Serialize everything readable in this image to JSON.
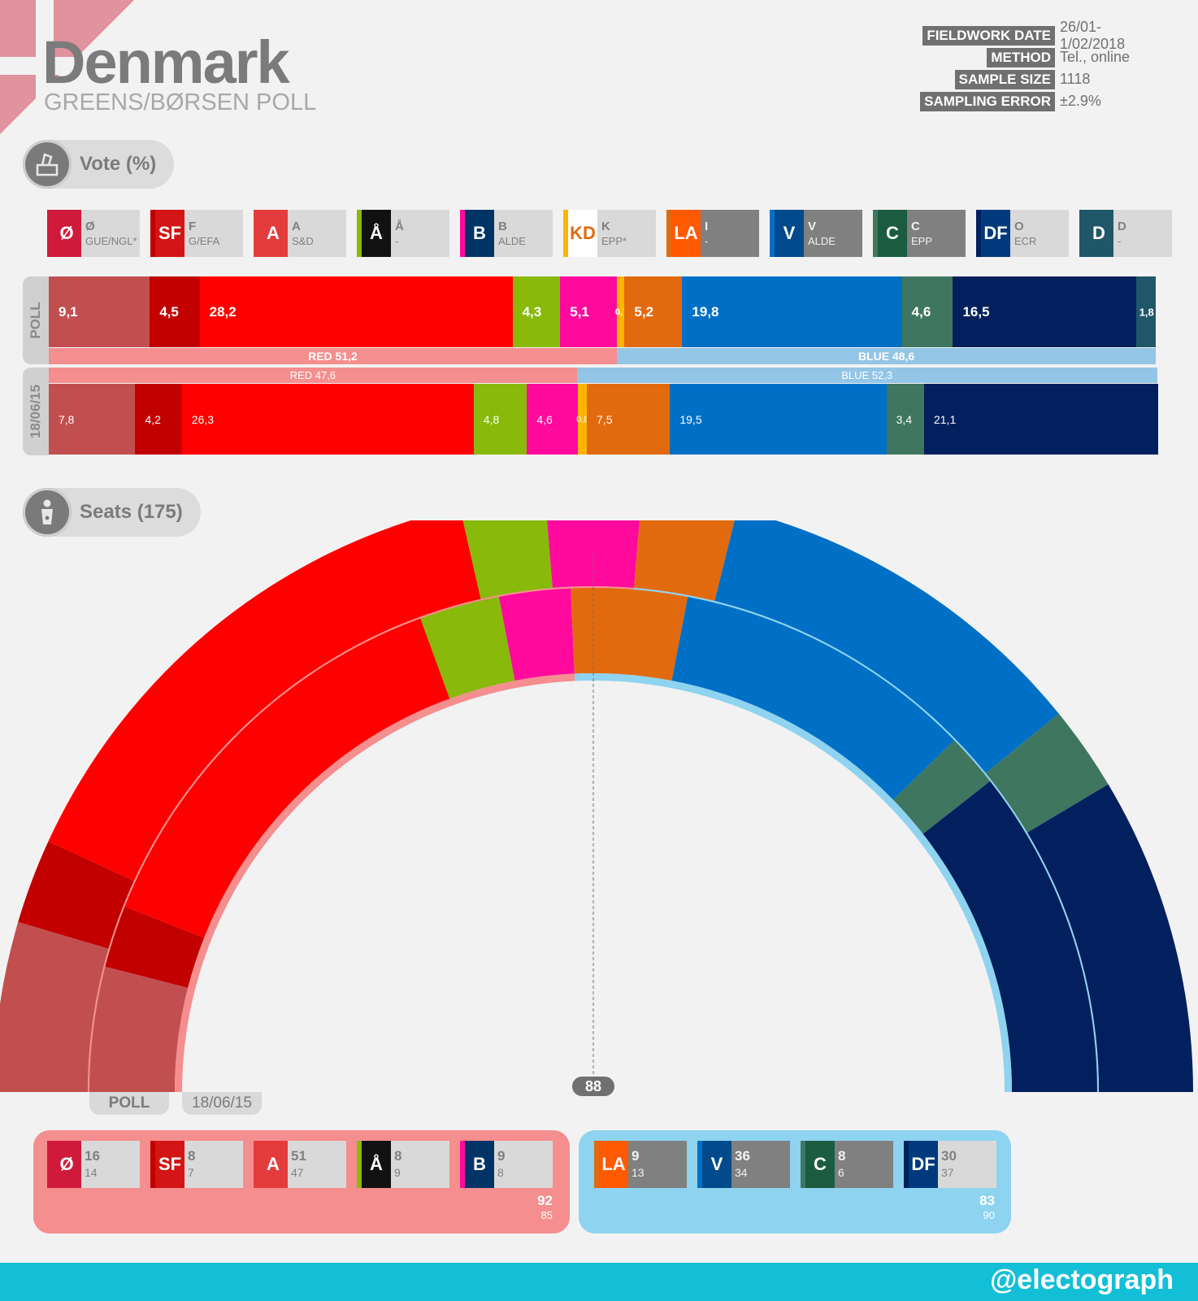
{
  "header": {
    "title": "Denmark",
    "subtitle": "GREENS/BØRSEN POLL",
    "meta": [
      {
        "label": "FIELDWORK DATE",
        "value": "26/01-1/02/2018"
      },
      {
        "label": "METHOD",
        "value": "Tel., online"
      },
      {
        "label": "SAMPLE SIZE",
        "value": "1118"
      },
      {
        "label": "SAMPLING ERROR",
        "value": "±2.9%"
      }
    ]
  },
  "vote_section": {
    "label": "Vote (%)"
  },
  "seats_section": {
    "label": "Seats (175)"
  },
  "colors": {
    "red_bloc": "#f58e8e",
    "blue_bloc": "#93c5e7",
    "blue_bloc_seats": "#8ed3ef",
    "footer": "#13bfd6"
  },
  "parties": [
    {
      "code": "Ø",
      "group": "GUE/NGL*",
      "logo": "Ø",
      "color": "#c24f50",
      "strip": "#d01a3c",
      "logo_bg": "#d01a3c",
      "dark": false
    },
    {
      "code": "F",
      "group": "G/EFA",
      "logo": "SF",
      "color": "#c20000",
      "strip": "#c20000",
      "logo_bg": "#d31515",
      "dark": false
    },
    {
      "code": "A",
      "group": "S&D",
      "logo": "A",
      "color": "#ff0000",
      "strip": "#e43c3c",
      "logo_bg": "#e43c3c",
      "dark": false
    },
    {
      "code": "Å",
      "group": "-",
      "logo": "Å",
      "color": "#88b90b",
      "strip": "#88b90b",
      "logo_bg": "#111111",
      "dark": false
    },
    {
      "code": "B",
      "group": "ALDE",
      "logo": "B",
      "color": "#ff0a9d",
      "strip": "#ff0a9d",
      "logo_bg": "#003366",
      "dark": false
    },
    {
      "code": "K",
      "group": "EPP*",
      "logo": "KD",
      "color": "#ffb400",
      "strip": "#ffb400",
      "logo_bg": "#ffffff",
      "dark": false
    },
    {
      "code": "I",
      "group": "-",
      "logo": "LA",
      "color": "#e26a0e",
      "strip": "#e26a0e",
      "logo_bg": "#ff5a00",
      "dark": true
    },
    {
      "code": "V",
      "group": "ALDE",
      "logo": "V",
      "color": "#0070c6",
      "strip": "#0070c6",
      "logo_bg": "#004a8c",
      "dark": true
    },
    {
      "code": "C",
      "group": "EPP",
      "logo": "C",
      "color": "#3f7660",
      "strip": "#3f7660",
      "logo_bg": "#1b5c40",
      "dark": true
    },
    {
      "code": "O",
      "group": "ECR",
      "logo": "DF",
      "color": "#02205e",
      "strip": "#02205e",
      "logo_bg": "#003a7d",
      "dark": false
    },
    {
      "code": "D",
      "group": "-",
      "logo": "D",
      "color": "#1f5769",
      "strip": "#1f5769",
      "logo_bg": "#1f5769",
      "dark": false
    }
  ],
  "chart_data": [
    {
      "type": "bar",
      "title": "Vote (%)",
      "orientation": "stacked-horizontal",
      "categories": [
        "Ø",
        "F",
        "A",
        "Å",
        "B",
        "K",
        "I",
        "V",
        "C",
        "O",
        "D"
      ],
      "series": [
        {
          "name": "POLL",
          "values": [
            9.1,
            4.5,
            28.2,
            4.3,
            5.1,
            0.7,
            5.2,
            19.8,
            4.6,
            16.5,
            1.8
          ],
          "labels": [
            "9,1",
            "4,5",
            "28,2",
            "4,3",
            "5,1",
            "0,7",
            "5,2",
            "19,8",
            "4,6",
            "16,5",
            "1,8"
          ]
        },
        {
          "name": "18/06/15",
          "values": [
            7.8,
            4.2,
            26.3,
            4.8,
            4.6,
            0.8,
            7.5,
            19.5,
            3.4,
            21.1,
            0
          ],
          "labels": [
            "7,8",
            "4,2",
            "26,3",
            "4,8",
            "4,6",
            "0,8",
            "7,5",
            "19,5",
            "3,4",
            "21,1",
            ""
          ]
        }
      ],
      "blocs": [
        {
          "row": "POLL",
          "red": 51.2,
          "blue": 48.6,
          "red_label": "RED 51,2",
          "blue_label": "BLUE 48,6"
        },
        {
          "row": "18/06/15",
          "red": 47.6,
          "blue": 52.3,
          "red_label": "RED 47,6",
          "blue_label": "BLUE 52,3"
        }
      ],
      "xlim": [
        0,
        100
      ]
    },
    {
      "type": "pie",
      "subtype": "parliament-hemicycle",
      "title": "Seats (175)",
      "categories": [
        "Ø",
        "F",
        "A",
        "Å",
        "B",
        "I",
        "V",
        "C",
        "O"
      ],
      "series": [
        {
          "name": "POLL",
          "values": [
            16,
            8,
            51,
            8,
            9,
            9,
            36,
            8,
            30
          ]
        },
        {
          "name": "18/06/15",
          "values": [
            14,
            7,
            47,
            9,
            8,
            13,
            34,
            6,
            37
          ]
        }
      ],
      "majority": 88,
      "majority_label": "88",
      "ring_labels": [
        "POLL",
        "18/06/15"
      ],
      "blocs": {
        "red": {
          "parties": [
            "Ø",
            "F",
            "A",
            "Å",
            "B"
          ],
          "now": 92,
          "prev": 85
        },
        "blue": {
          "parties": [
            "I",
            "V",
            "C",
            "O"
          ],
          "now": 83,
          "prev": 90
        }
      }
    }
  ],
  "seats_boxes": {
    "red": [
      {
        "party": 0,
        "now": "16",
        "prev": "14"
      },
      {
        "party": 1,
        "now": "8",
        "prev": "7"
      },
      {
        "party": 2,
        "now": "51",
        "prev": "47"
      },
      {
        "party": 3,
        "now": "8",
        "prev": "9"
      },
      {
        "party": 4,
        "now": "9",
        "prev": "8"
      }
    ],
    "blue": [
      {
        "party": 6,
        "now": "9",
        "prev": "13"
      },
      {
        "party": 7,
        "now": "36",
        "prev": "34"
      },
      {
        "party": 8,
        "now": "8",
        "prev": "6"
      },
      {
        "party": 9,
        "now": "30",
        "prev": "37"
      }
    ],
    "red_total_now": "92",
    "red_total_prev": "85",
    "blue_total_now": "83",
    "blue_total_prev": "90"
  },
  "footer": {
    "handle": "@electograph"
  }
}
